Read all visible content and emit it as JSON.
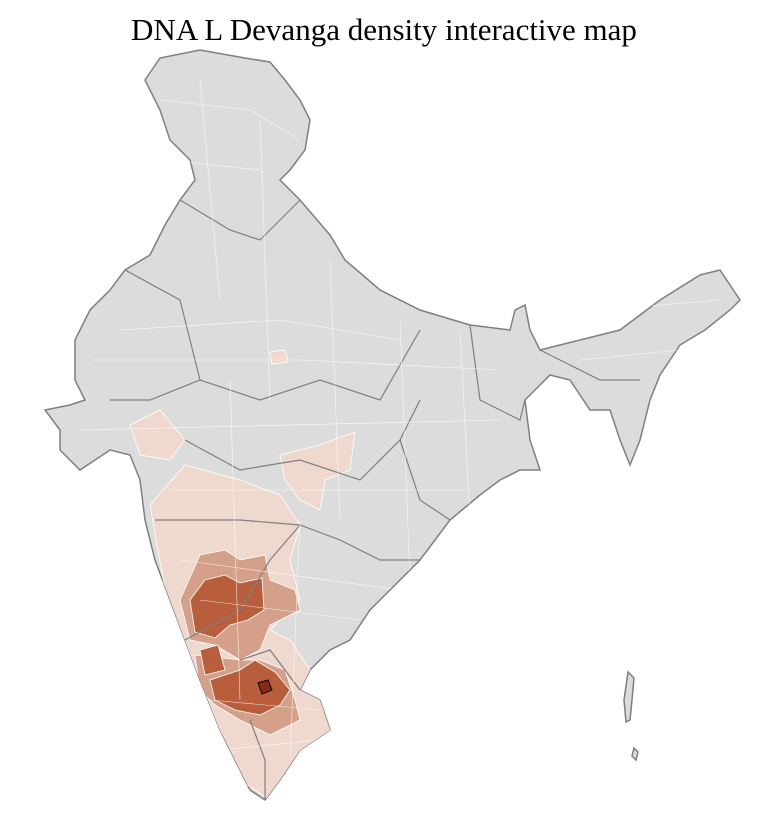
{
  "title": "DNA L Devanga density interactive map",
  "map": {
    "type": "choropleth",
    "region": "India districts",
    "colors": {
      "no_data": "#dcdcdc",
      "district_border": "#ffffff",
      "state_border": "#7f7f7f",
      "low": "#efd8cd",
      "medium": "#d4a08a",
      "high": "#b95e3d",
      "highest": "#8a2a0e"
    },
    "legend": "none"
  }
}
